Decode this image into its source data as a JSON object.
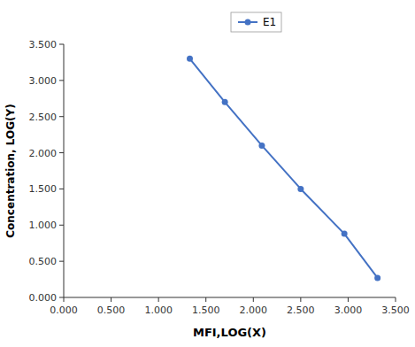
{
  "chart_data": {
    "type": "line",
    "x": [
      1.33,
      1.7,
      2.09,
      2.5,
      2.96,
      3.31
    ],
    "series": [
      {
        "name": "E1",
        "color": "#4472C4",
        "marker": "circle",
        "values": [
          3.3,
          2.7,
          2.1,
          1.5,
          0.88,
          0.27
        ]
      }
    ],
    "xlabel": "MFI,LOG(X)",
    "ylabel": "Concentration, LOG(Y)",
    "xlim": [
      0.0,
      3.5
    ],
    "ylim": [
      0.0,
      3.5
    ],
    "xticks": [
      {
        "value": 0.0,
        "label": "0.000"
      },
      {
        "value": 0.5,
        "label": "0.500"
      },
      {
        "value": 1.0,
        "label": "1.000"
      },
      {
        "value": 1.5,
        "label": "1.500"
      },
      {
        "value": 2.0,
        "label": "2.000"
      },
      {
        "value": 2.5,
        "label": "2.500"
      },
      {
        "value": 3.0,
        "label": "3.000"
      },
      {
        "value": 3.5,
        "label": "3.500"
      }
    ],
    "yticks": [
      {
        "value": 0.0,
        "label": "0.000"
      },
      {
        "value": 0.5,
        "label": "0.500"
      },
      {
        "value": 1.0,
        "label": "1.000"
      },
      {
        "value": 1.5,
        "label": "1.500"
      },
      {
        "value": 2.0,
        "label": "2.000"
      },
      {
        "value": 2.5,
        "label": "2.500"
      },
      {
        "value": 3.0,
        "label": "3.000"
      },
      {
        "value": 3.5,
        "label": "3.500"
      }
    ],
    "grid": false,
    "legend": "top"
  }
}
